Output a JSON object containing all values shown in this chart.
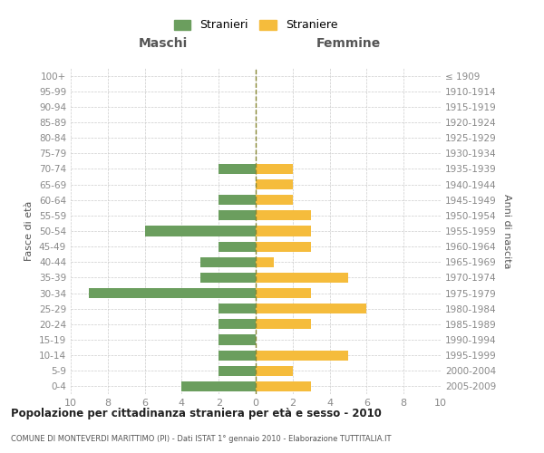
{
  "age_groups": [
    "0-4",
    "5-9",
    "10-14",
    "15-19",
    "20-24",
    "25-29",
    "30-34",
    "35-39",
    "40-44",
    "45-49",
    "50-54",
    "55-59",
    "60-64",
    "65-69",
    "70-74",
    "75-79",
    "80-84",
    "85-89",
    "90-94",
    "95-99",
    "100+"
  ],
  "birth_years": [
    "2005-2009",
    "2000-2004",
    "1995-1999",
    "1990-1994",
    "1985-1989",
    "1980-1984",
    "1975-1979",
    "1970-1974",
    "1965-1969",
    "1960-1964",
    "1955-1959",
    "1950-1954",
    "1945-1949",
    "1940-1944",
    "1935-1939",
    "1930-1934",
    "1925-1929",
    "1920-1924",
    "1915-1919",
    "1910-1914",
    "≤ 1909"
  ],
  "maschi": [
    4,
    2,
    2,
    2,
    2,
    2,
    9,
    3,
    3,
    2,
    6,
    2,
    2,
    0,
    2,
    0,
    0,
    0,
    0,
    0,
    0
  ],
  "femmine": [
    3,
    2,
    5,
    0,
    3,
    6,
    3,
    5,
    1,
    3,
    3,
    3,
    2,
    2,
    2,
    0,
    0,
    0,
    0,
    0,
    0
  ],
  "color_maschi": "#6b9e5e",
  "color_femmine": "#f5bc3c",
  "title": "Popolazione per cittadinanza straniera per età e sesso - 2010",
  "subtitle": "COMUNE DI MONTEVERDI MARITTIMO (PI) - Dati ISTAT 1° gennaio 2010 - Elaborazione TUTTITALIA.IT",
  "legend_maschi": "Stranieri",
  "legend_femmine": "Straniere",
  "header_left": "Maschi",
  "header_right": "Femmine",
  "ylabel_left": "Fasce di età",
  "ylabel_right": "Anni di nascita",
  "xlim": 10,
  "bg_color": "#ffffff",
  "grid_color": "#cccccc",
  "axis_label_color": "#555555",
  "tick_color": "#888888"
}
